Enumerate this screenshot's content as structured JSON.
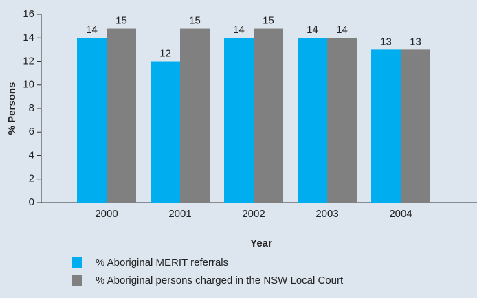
{
  "chart_data": {
    "type": "bar",
    "categories": [
      "2000",
      "2001",
      "2002",
      "2003",
      "2004"
    ],
    "series": [
      {
        "name": "% Aboriginal MERIT referrals",
        "color": "#00aeef",
        "values": [
          14,
          12,
          14,
          14,
          13
        ]
      },
      {
        "name": "% Aboriginal persons charged in the NSW Local Court",
        "color": "#808080",
        "values": [
          14.8,
          14.8,
          14.8,
          14,
          13
        ],
        "value_labels": [
          "15",
          "15",
          "15",
          "14",
          "13"
        ]
      }
    ],
    "xlabel": "Year",
    "ylabel": "% Persons",
    "ylim": [
      0,
      16
    ],
    "yticks": [
      0,
      2,
      4,
      6,
      8,
      10,
      12,
      14,
      16
    ],
    "legend": "bottom"
  }
}
